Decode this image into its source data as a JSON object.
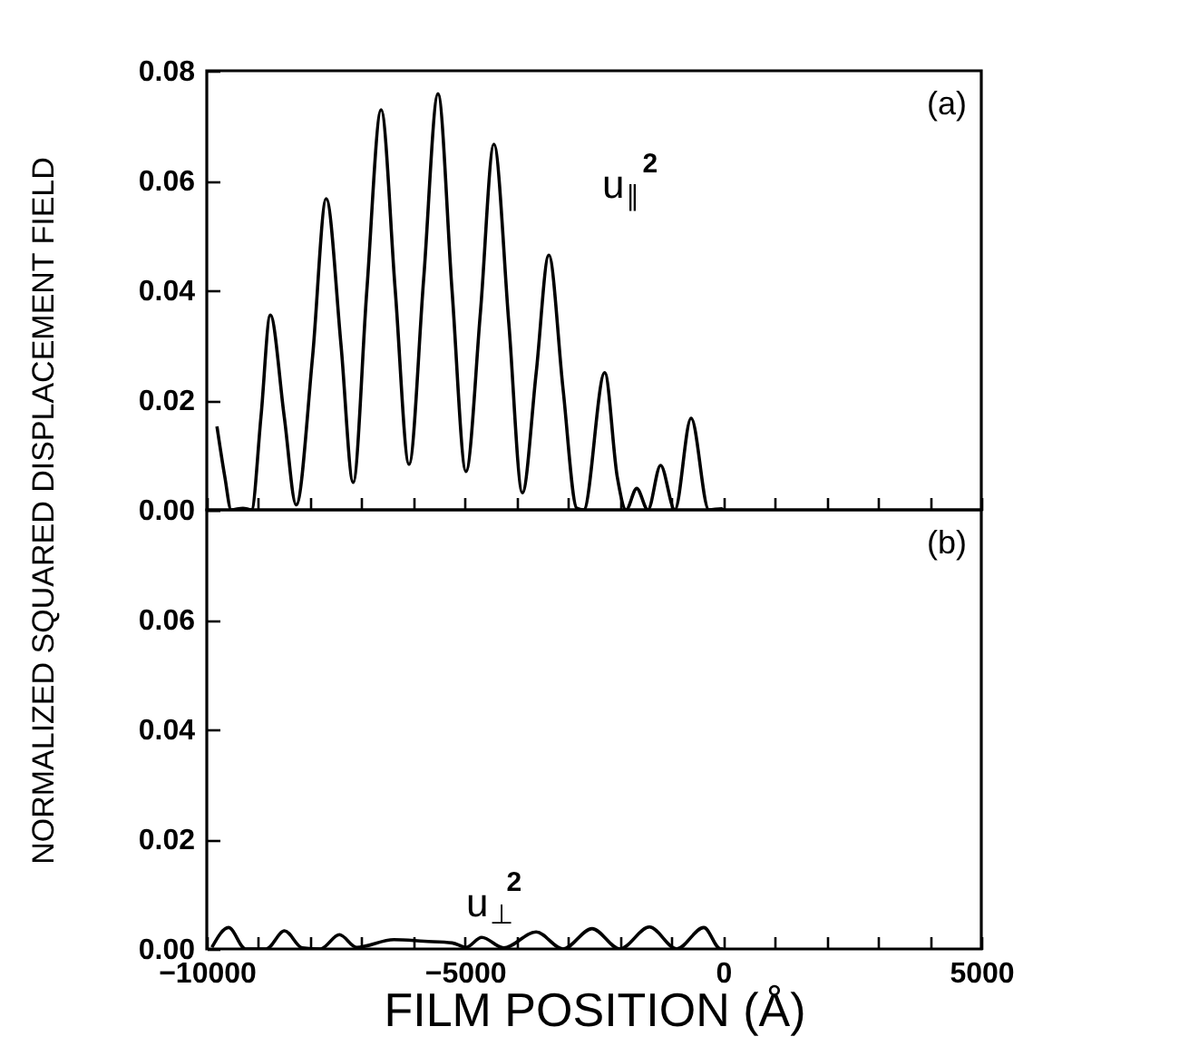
{
  "chart_data": [
    {
      "type": "line",
      "ylabel": "NORMALIZED SQUARED DISPLACEMENT FIELD",
      "annotations": [
        "(a)",
        "u$_{∥}$$^{2}$"
      ],
      "series": [
        {
          "color": "#000000",
          "x": [
            -9803,
            -9650,
            -9527,
            -9300,
            -9134,
            -8950,
            -8770,
            -8500,
            -8268,
            -7950,
            -7687,
            -7400,
            -7165,
            -6900,
            -6624,
            -6350,
            -6083,
            -5800,
            -5522,
            -5250,
            -4980,
            -4700,
            -4439,
            -4150,
            -3888,
            -3620,
            -3376,
            -3100,
            -2835,
            -2700,
            -2293,
            -2050,
            -1880,
            -1673,
            -1457,
            -1211,
            -935,
            -620,
            -276,
            -30,
            0
          ],
          "values": [
            0.0152,
            0.006,
            0,
            0.0003,
            0,
            0.017,
            0.0355,
            0.017,
            0.0009,
            0.028,
            0.0567,
            0.03,
            0.005,
            0.04,
            0.0729,
            0.04,
            0.0083,
            0.042,
            0.0758,
            0.04,
            0.007,
            0.036,
            0.0666,
            0.034,
            0.0031,
            0.025,
            0.0464,
            0.022,
            0.0003,
            0,
            0.025,
            0.006,
            0,
            0.0039,
            0,
            0.0081,
            0,
            0.0167,
            0,
            0.0002,
            0
          ]
        }
      ],
      "xlim": [
        -10000,
        5000
      ],
      "xticks": [
        -10000,
        {
          "value": -9000,
          "label": null
        },
        {
          "value": -8000,
          "label": null
        },
        {
          "value": -7000,
          "label": null
        },
        {
          "value": -6000,
          "label": null
        },
        -5000,
        {
          "value": -4000,
          "label": null
        },
        {
          "value": -3000,
          "label": null
        },
        {
          "value": -2000,
          "label": null
        },
        {
          "value": -1000,
          "label": null
        },
        0,
        {
          "value": 1000,
          "label": null
        },
        {
          "value": 2000,
          "label": null
        },
        {
          "value": 3000,
          "label": null
        },
        {
          "value": 4000,
          "label": null
        },
        5000
      ],
      "ylim": [
        0,
        0.08
      ],
      "yticks": [
        {
          "value": 0,
          "label": "0.00"
        },
        {
          "value": 0.02,
          "label": "0.02"
        },
        {
          "value": 0.04,
          "label": "0.04"
        },
        {
          "value": 0.06,
          "label": "0.06"
        },
        {
          "value": 0.08,
          "label": "0.08"
        }
      ],
      "tick_labels": "y",
      "grid": false
    },
    {
      "type": "line",
      "xlabel": "FILM POSITION (Å)",
      "annotations": [
        "(b)",
        "u$_{⊥}$$^{2}$"
      ],
      "series": [
        {
          "color": "#000000",
          "x": [
            -9900,
            -9577,
            -9250,
            -8850,
            -8494,
            -8150,
            -7800,
            -7431,
            -7100,
            -6378,
            -5787,
            -5246,
            -4980,
            -4675,
            -4250,
            -3622,
            -3100,
            -2539,
            -2000,
            -1427,
            -900,
            -374,
            -50,
            0
          ],
          "values": [
            0.0003,
            0.0039,
            0,
            0,
            0.0033,
            0.0002,
            0,
            0.0026,
            0.0003,
            0.0017,
            0.0014,
            0.0011,
            0.0003,
            0.0021,
            0.0002,
            0.0031,
            0,
            0.0037,
            0,
            0.004,
            0,
            0.0039,
            0,
            0
          ]
        }
      ],
      "xlim": [
        -10000,
        5000
      ],
      "xticks": [
        -10000,
        {
          "value": -9000,
          "label": null
        },
        {
          "value": -8000,
          "label": null
        },
        {
          "value": -7000,
          "label": null
        },
        {
          "value": -6000,
          "label": null
        },
        -5000,
        {
          "value": -4000,
          "label": null
        },
        {
          "value": -3000,
          "label": null
        },
        {
          "value": -2000,
          "label": null
        },
        {
          "value": -1000,
          "label": null
        },
        0,
        {
          "value": 1000,
          "label": null
        },
        {
          "value": 2000,
          "label": null
        },
        {
          "value": 3000,
          "label": null
        },
        {
          "value": 4000,
          "label": null
        },
        5000
      ],
      "ylim": [
        0,
        0.08
      ],
      "yticks": [
        {
          "value": 0,
          "label": "0.00"
        },
        {
          "value": 0.02,
          "label": "0.02"
        },
        {
          "value": 0.04,
          "label": "0.04"
        },
        {
          "value": 0.06,
          "label": "0.06"
        },
        {
          "value": 0.08,
          "label": null
        }
      ],
      "grid": false
    }
  ]
}
